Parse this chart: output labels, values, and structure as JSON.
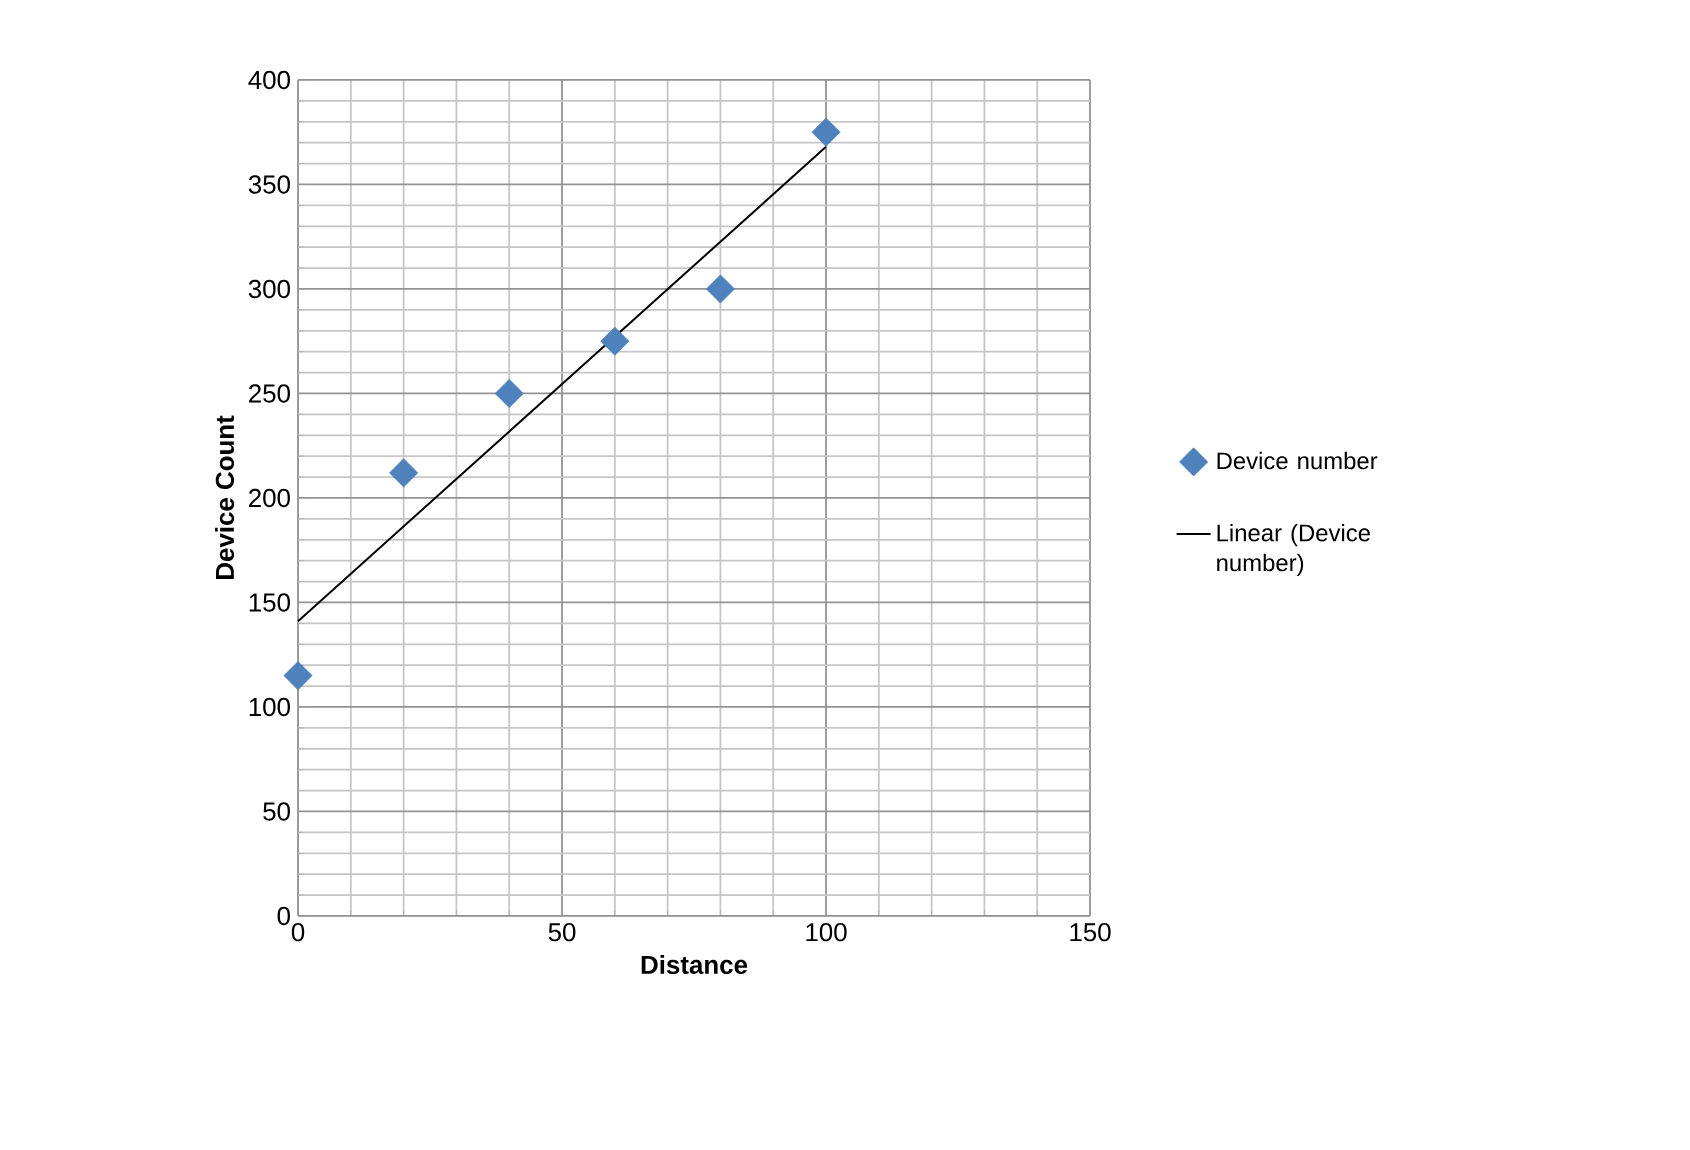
{
  "chart_data": {
    "type": "scatter",
    "xlabel": "Distance",
    "ylabel": "Device Count",
    "xlim": [
      0,
      150
    ],
    "ylim": [
      0,
      400
    ],
    "xticks": [
      0,
      50,
      100,
      150
    ],
    "yticks": [
      0,
      50,
      100,
      150,
      200,
      250,
      300,
      350,
      400
    ],
    "grid": true,
    "legend": "right",
    "series": [
      {
        "name": "Device number",
        "marker": "diamond",
        "color": "#4f81bd",
        "x": [
          0,
          20,
          40,
          60,
          80,
          100
        ],
        "values": [
          115,
          212,
          250,
          275,
          300,
          375
        ]
      },
      {
        "name": "Linear (Device number)",
        "type": "line",
        "marker": "none",
        "line_style": "solid",
        "color": "#000000",
        "x": [
          0,
          100
        ],
        "values": [
          141,
          368
        ]
      }
    ]
  }
}
